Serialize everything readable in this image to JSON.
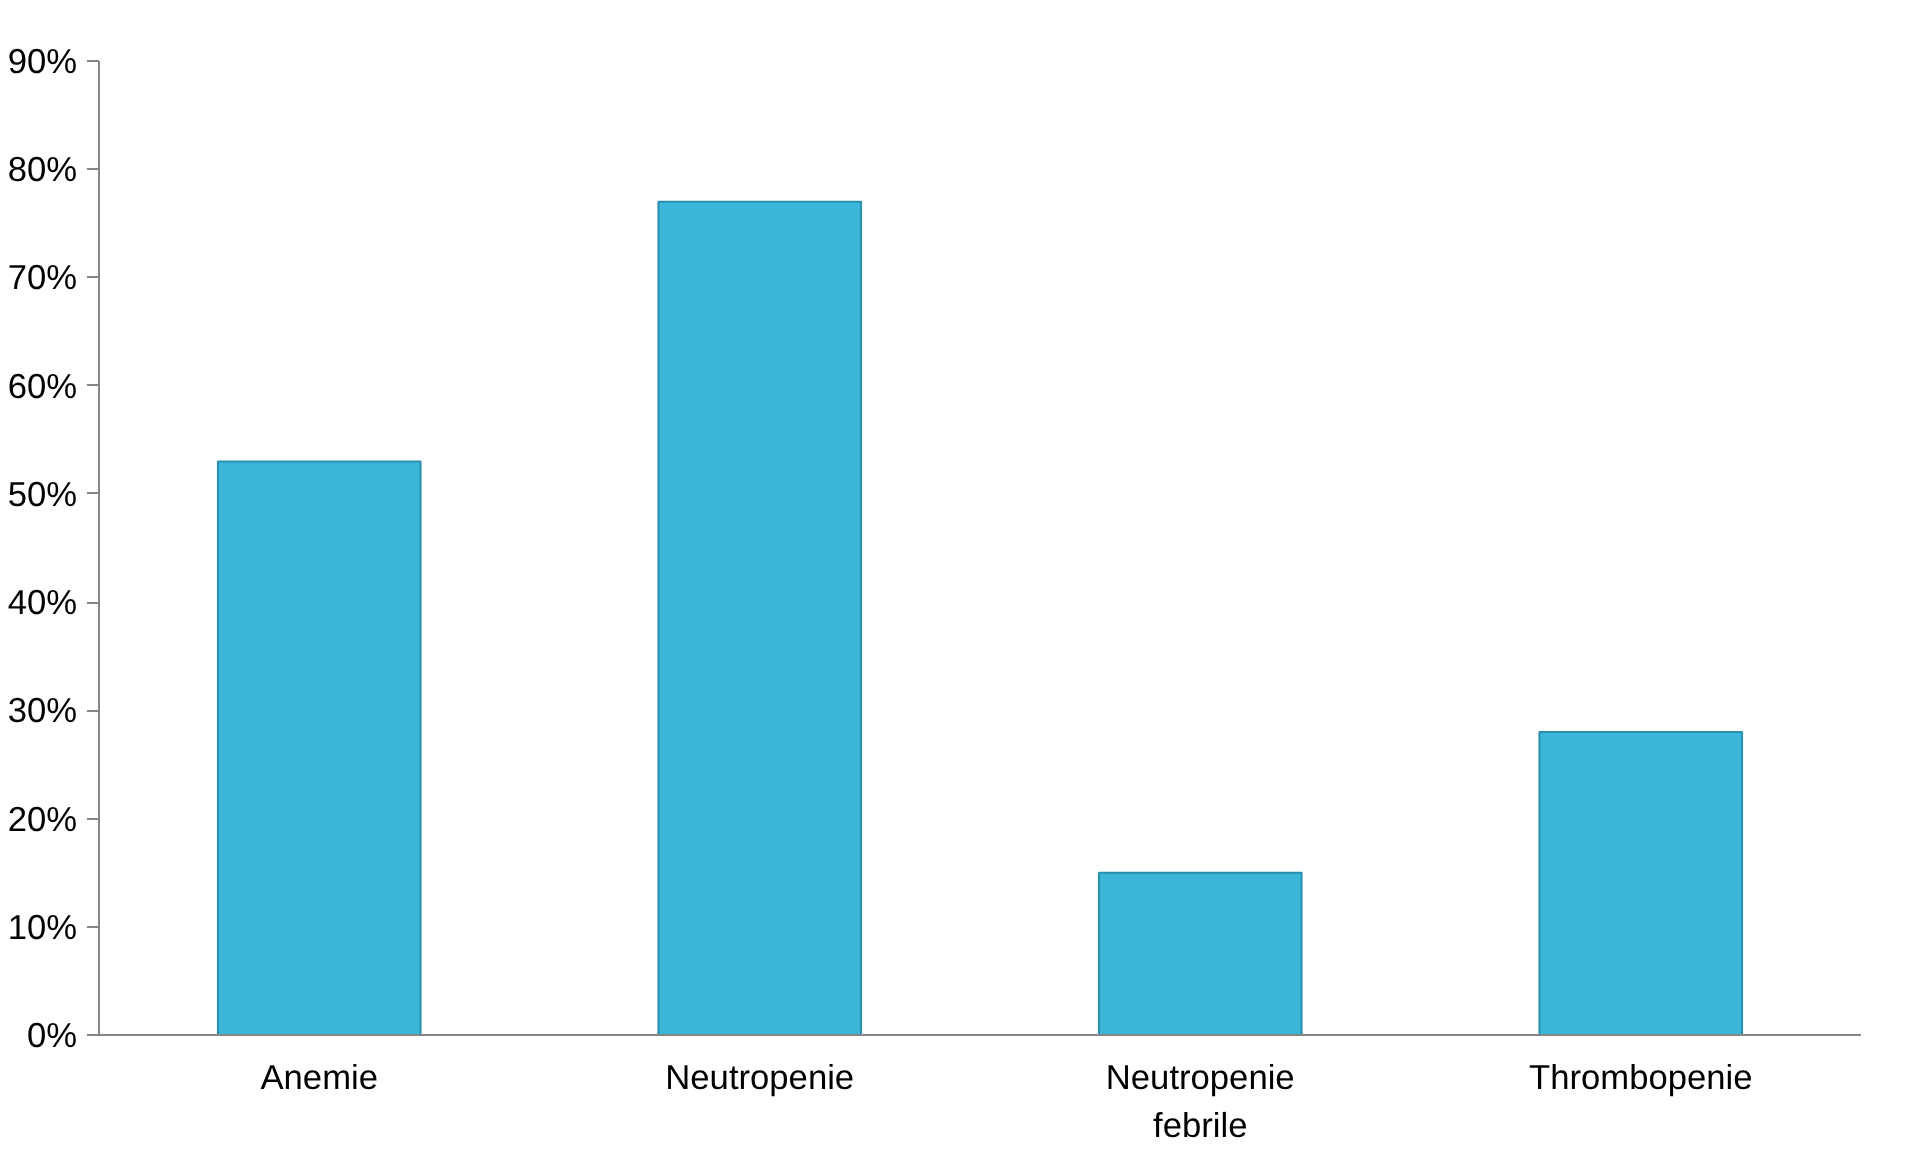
{
  "chart_data": {
    "type": "bar",
    "categories": [
      "Anemie",
      "Neutropenie",
      "Neutropenie febrile",
      "Thrombopenie"
    ],
    "values": [
      53,
      77,
      15,
      28
    ],
    "color": "#3bb6d9",
    "ylim": [
      0,
      90
    ],
    "yticks": [
      {
        "value": 0,
        "label": "0%"
      },
      {
        "value": 10,
        "label": "10%"
      },
      {
        "value": 20,
        "label": "20%"
      },
      {
        "value": 30,
        "label": "30%"
      },
      {
        "value": 40,
        "label": "40%"
      },
      {
        "value": 50,
        "label": "50%"
      },
      {
        "value": 60,
        "label": "60%"
      },
      {
        "value": 70,
        "label": "70%"
      },
      {
        "value": 80,
        "label": "80%"
      },
      {
        "value": 90,
        "label": "90%"
      }
    ],
    "grid": false
  }
}
